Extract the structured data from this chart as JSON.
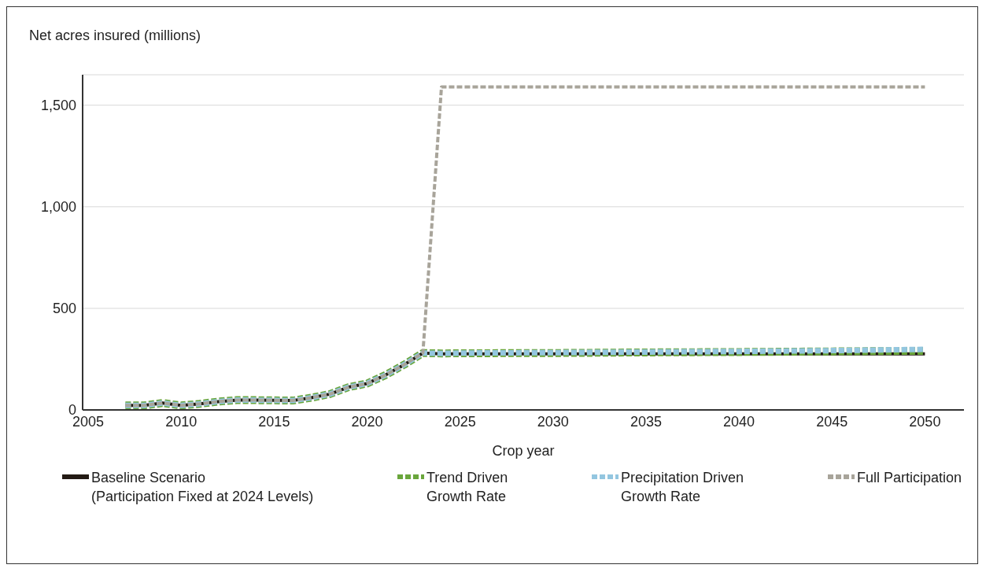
{
  "chart_data": {
    "type": "line",
    "ylabel": "Net acres insured (millions)",
    "xlabel": "Crop year",
    "x": [
      2007,
      2008,
      2009,
      2010,
      2011,
      2012,
      2013,
      2014,
      2015,
      2016,
      2017,
      2018,
      2019,
      2020,
      2021,
      2022,
      2023,
      2024,
      2025,
      2030,
      2035,
      2040,
      2045,
      2050
    ],
    "series": [
      {
        "name": "Baseline Scenario\n(Participation Fixed at 2024 Levels)",
        "color": "#231a14",
        "line_style": "solid",
        "values": [
          22,
          22,
          34,
          22,
          30,
          41,
          48,
          48,
          47,
          46,
          60,
          78,
          112,
          130,
          172,
          223,
          280,
          276,
          276,
          276,
          276,
          276,
          276,
          276
        ]
      },
      {
        "name": "Trend Driven\nGrowth Rate",
        "color": "#6aa63c",
        "line_style": "dashed",
        "values": [
          22,
          22,
          34,
          22,
          30,
          41,
          48,
          48,
          47,
          46,
          60,
          78,
          112,
          130,
          172,
          223,
          280,
          278,
          279,
          280,
          283,
          285,
          288,
          291
        ]
      },
      {
        "name": "Precipitation Driven\nGrowth Rate",
        "color": "#93c6e0",
        "line_style": "dashed",
        "values": [
          22,
          22,
          34,
          22,
          30,
          41,
          48,
          48,
          47,
          46,
          60,
          78,
          112,
          130,
          172,
          223,
          280,
          278,
          280,
          282,
          285,
          288,
          292,
          298
        ]
      },
      {
        "name": "Full Participation",
        "color": "#a8a49a",
        "line_style": "dashed",
        "values": [
          22,
          22,
          34,
          22,
          30,
          41,
          48,
          48,
          47,
          46,
          60,
          78,
          112,
          130,
          172,
          223,
          280,
          1590,
          1590,
          1590,
          1590,
          1590,
          1590,
          1590
        ]
      }
    ],
    "xlim": [
      2004.7,
      2052.1
    ],
    "xticks": [
      2005,
      2010,
      2015,
      2020,
      2025,
      2030,
      2035,
      2040,
      2045,
      2050
    ],
    "ylim": [
      0,
      1650
    ],
    "yticks": [
      {
        "value": 0,
        "label": "0"
      },
      {
        "value": 500,
        "label": "500"
      },
      {
        "value": 1000,
        "label": "1,000"
      },
      {
        "value": 1500,
        "label": "1,500"
      }
    ],
    "grid": "y",
    "legend": "bottom",
    "marker": "none"
  }
}
